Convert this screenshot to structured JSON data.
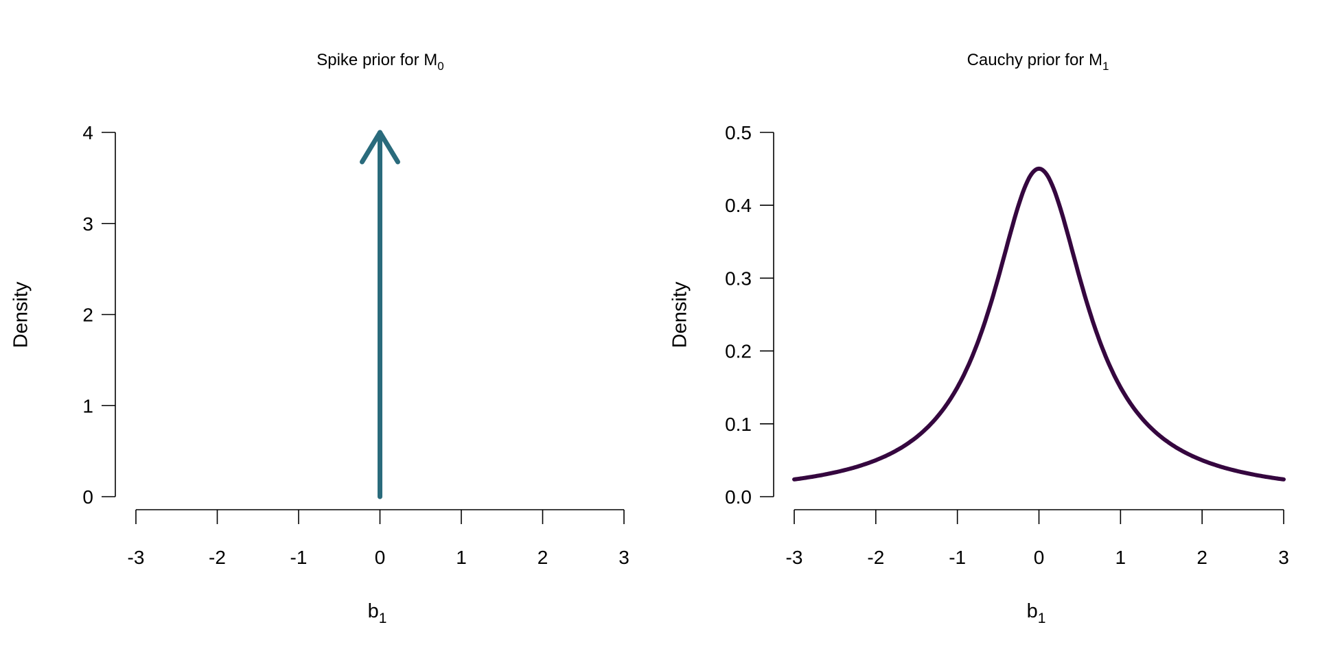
{
  "chart_data": [
    {
      "type": "line",
      "title": "Spike prior for  M",
      "title_sub": "0",
      "xlabel": "b",
      "xlabel_sub": "1",
      "ylabel": "Density",
      "xlim": [
        -3,
        3
      ],
      "ylim": [
        0,
        4
      ],
      "xticks": [
        "-3",
        "-2",
        "-1",
        "0",
        "1",
        "2",
        "3"
      ],
      "yticks": [
        "0",
        "1",
        "2",
        "3",
        "4"
      ],
      "series": [
        {
          "name": "spike",
          "kind": "arrow",
          "x": [
            0,
            0
          ],
          "y": [
            0,
            4
          ],
          "color": "#2a6b7c"
        }
      ],
      "grid": false
    },
    {
      "type": "line",
      "title": "Cauchy prior for  M",
      "title_sub": "1",
      "xlabel": "b",
      "xlabel_sub": "1",
      "ylabel": "Density",
      "xlim": [
        -3,
        3
      ],
      "ylim": [
        0,
        0.5
      ],
      "xticks": [
        "-3",
        "-2",
        "-1",
        "0",
        "1",
        "2",
        "3"
      ],
      "yticks": [
        "0.0",
        "0.1",
        "0.2",
        "0.3",
        "0.4",
        "0.5"
      ],
      "series": [
        {
          "name": "cauchy",
          "kind": "cauchy",
          "location": 0,
          "scale": 0.707,
          "x_range": [
            -3,
            3
          ],
          "color": "#35073f"
        }
      ],
      "grid": false
    }
  ]
}
